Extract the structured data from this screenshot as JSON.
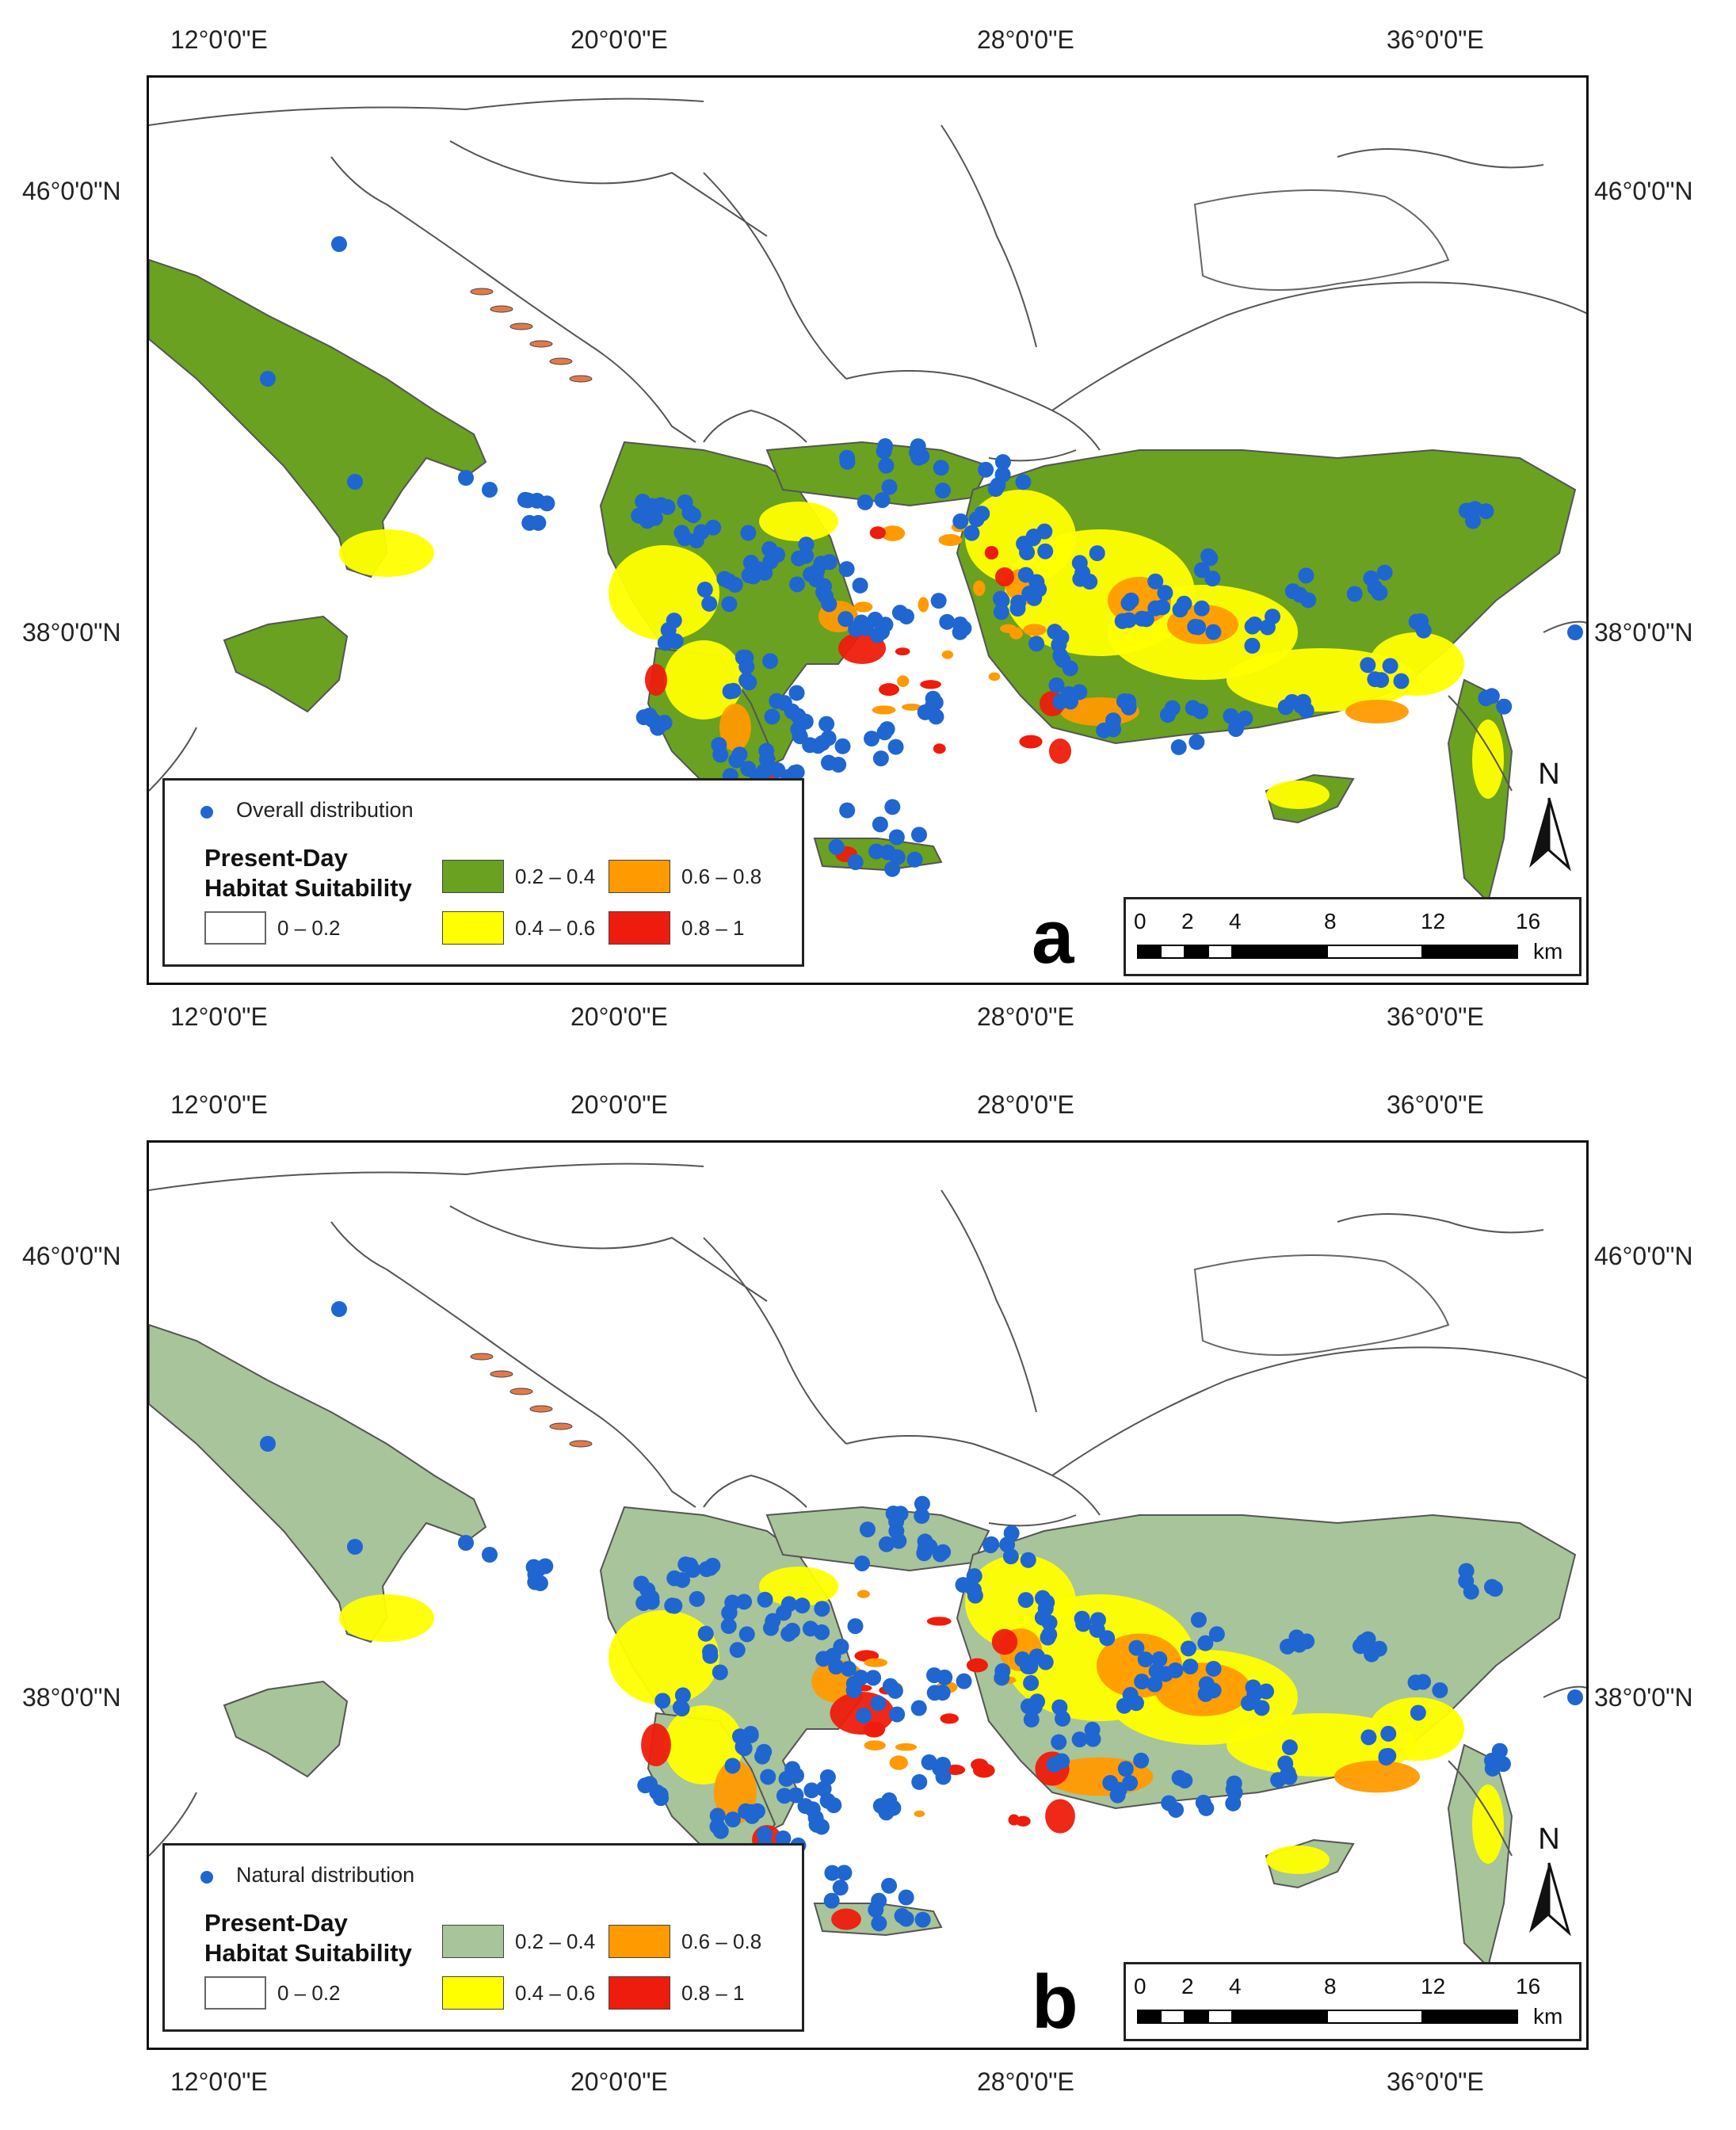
{
  "panels": [
    {
      "id": "a",
      "letter": "a",
      "point_legend": "Overall distribution",
      "legend_title_1": "Present-Day",
      "legend_title_2": "Habitat Suitability",
      "classes": [
        {
          "label": "0 – 0.2",
          "color": "#ffffff"
        },
        {
          "label": "0.2 – 0.4",
          "color": "#6aa121"
        },
        {
          "label": "0.4 – 0.6",
          "color": "#ffff00"
        },
        {
          "label": "0.6 – 0.8",
          "color": "#ff9a00"
        },
        {
          "label": "0.8 – 1",
          "color": "#ee1c0c"
        }
      ],
      "lowclass_color": "#6aa121"
    },
    {
      "id": "b",
      "letter": "b",
      "point_legend": "Natural distribution",
      "legend_title_1": "Present-Day",
      "legend_title_2": "Habitat Suitability",
      "classes": [
        {
          "label": "0 – 0.2",
          "color": "#ffffff"
        },
        {
          "label": "0.2 – 0.4",
          "color": "#6aa121"
        },
        {
          "label": "0.4 – 0.6",
          "color": "#ffff00"
        },
        {
          "label": "0.6 – 0.8",
          "color": "#ff9a00"
        },
        {
          "label": "0.8 – 1",
          "color": "#ee1c0c"
        }
      ],
      "lowclass_color": "#a8c49a"
    }
  ],
  "axes": {
    "lon_labels": [
      "12°0'0\"E",
      "20°0'0\"E",
      "28°0'0\"E",
      "36°0'0\"E"
    ],
    "lat_labels": [
      "46°0'0\"N",
      "38°0'0\"N"
    ]
  },
  "scale_bar": {
    "ticks": [
      "0",
      "2",
      "4",
      "8",
      "12",
      "16"
    ],
    "unit": "km"
  },
  "north_label": "N",
  "point_color": "#1f66d1"
}
